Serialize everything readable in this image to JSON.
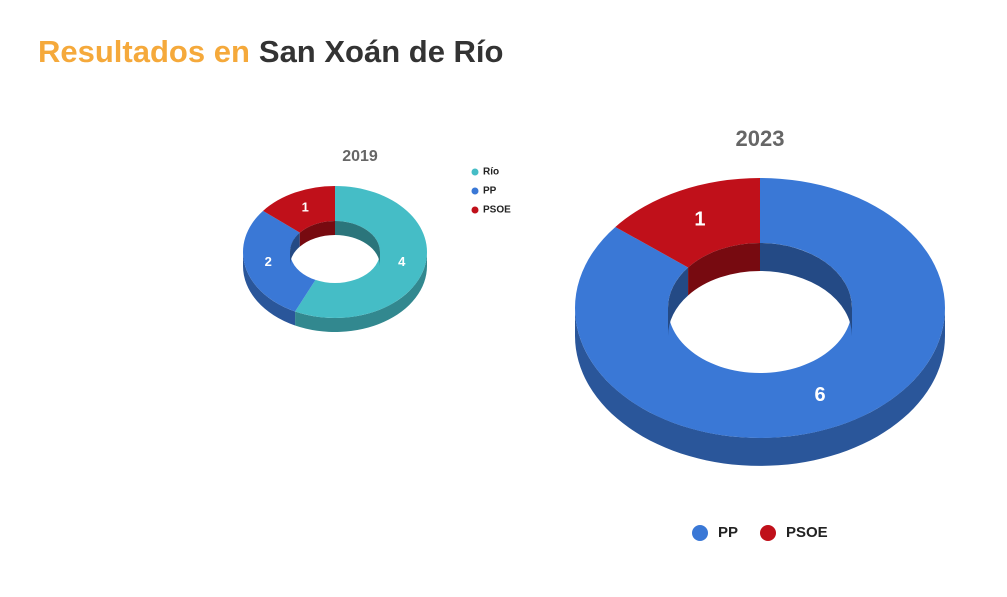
{
  "header": {
    "title_highlight": "Resultados en",
    "title": "San Xoán de Río"
  },
  "chart_data": [
    {
      "type": "donut",
      "title": "2019",
      "categories": [
        "Río",
        "PP",
        "PSOE"
      ],
      "values": [
        4,
        2,
        1
      ],
      "colors": [
        "#45bdc6",
        "#3a78d6",
        "#c0101a"
      ],
      "legend": "right"
    },
    {
      "type": "donut",
      "title": "2023",
      "categories": [
        "PP",
        "PSOE"
      ],
      "values": [
        6,
        1
      ],
      "colors": [
        "#3a78d6",
        "#c0101a"
      ],
      "legend": "bottom"
    }
  ]
}
